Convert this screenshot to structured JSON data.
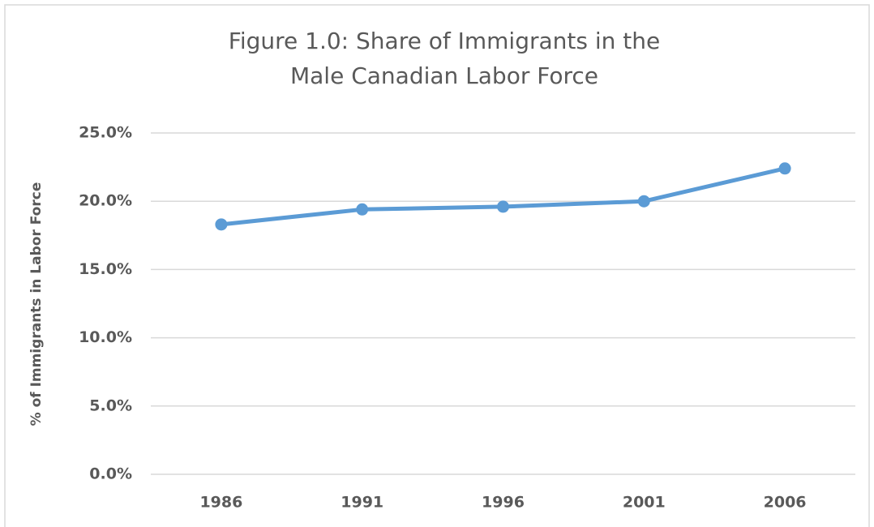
{
  "chart_data": {
    "type": "line",
    "title": [
      "Figure 1.0: Share of Immigrants in the",
      "Male Canadian Labor Force"
    ],
    "y_label": "% of Immigrants in Labor Force",
    "categories": [
      "1986",
      "1991",
      "1996",
      "2001",
      "2006"
    ],
    "series": [
      {
        "color": "#5b9bd5",
        "values": [
          18.3,
          19.4,
          19.6,
          20.0,
          22.4
        ]
      }
    ],
    "ylim": [
      0,
      25
    ],
    "yticks": [
      {
        "value": 0,
        "label": "0.0%"
      },
      {
        "value": 5,
        "label": "5.0%"
      },
      {
        "value": 10,
        "label": "10.0%"
      },
      {
        "value": 15,
        "label": "15.0%"
      },
      {
        "value": 20,
        "label": "20.0%"
      },
      {
        "value": 25,
        "label": "25.0%"
      }
    ],
    "grid": true
  }
}
